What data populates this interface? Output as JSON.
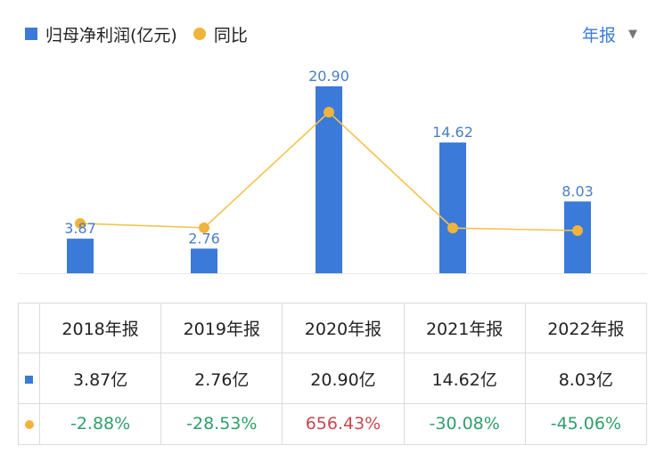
{
  "legend": {
    "bar_label": "归母净利润(亿元)",
    "line_label": "同比"
  },
  "period_selector": {
    "label": "年报"
  },
  "colors": {
    "bar": "#3b7ad9",
    "line": "#f2c44e",
    "dot": "#f0b43c",
    "positive": "#c8474f",
    "negative": "#2e9e6a",
    "bar_label": "#4a7fbf"
  },
  "chart_data": {
    "type": "bar",
    "categories": [
      "2018年报",
      "2019年报",
      "2020年报",
      "2021年报",
      "2022年报"
    ],
    "series": [
      {
        "name": "归母净利润(亿元)",
        "type": "bar",
        "values": [
          3.87,
          2.76,
          20.9,
          14.62,
          8.03
        ],
        "labels": [
          "3.87",
          "2.76",
          "20.90",
          "14.62",
          "8.03"
        ]
      },
      {
        "name": "同比",
        "type": "line",
        "values": [
          -2.88,
          -28.53,
          656.43,
          -30.08,
          -45.06
        ]
      }
    ]
  },
  "table": {
    "headers": [
      "2018年报",
      "2019年报",
      "2020年报",
      "2021年报",
      "2022年报"
    ],
    "profit_row": [
      "3.87亿",
      "2.76亿",
      "20.90亿",
      "14.62亿",
      "8.03亿"
    ],
    "yoy_row": [
      "-2.88%",
      "-28.53%",
      "656.43%",
      "-30.08%",
      "-45.06%"
    ]
  }
}
